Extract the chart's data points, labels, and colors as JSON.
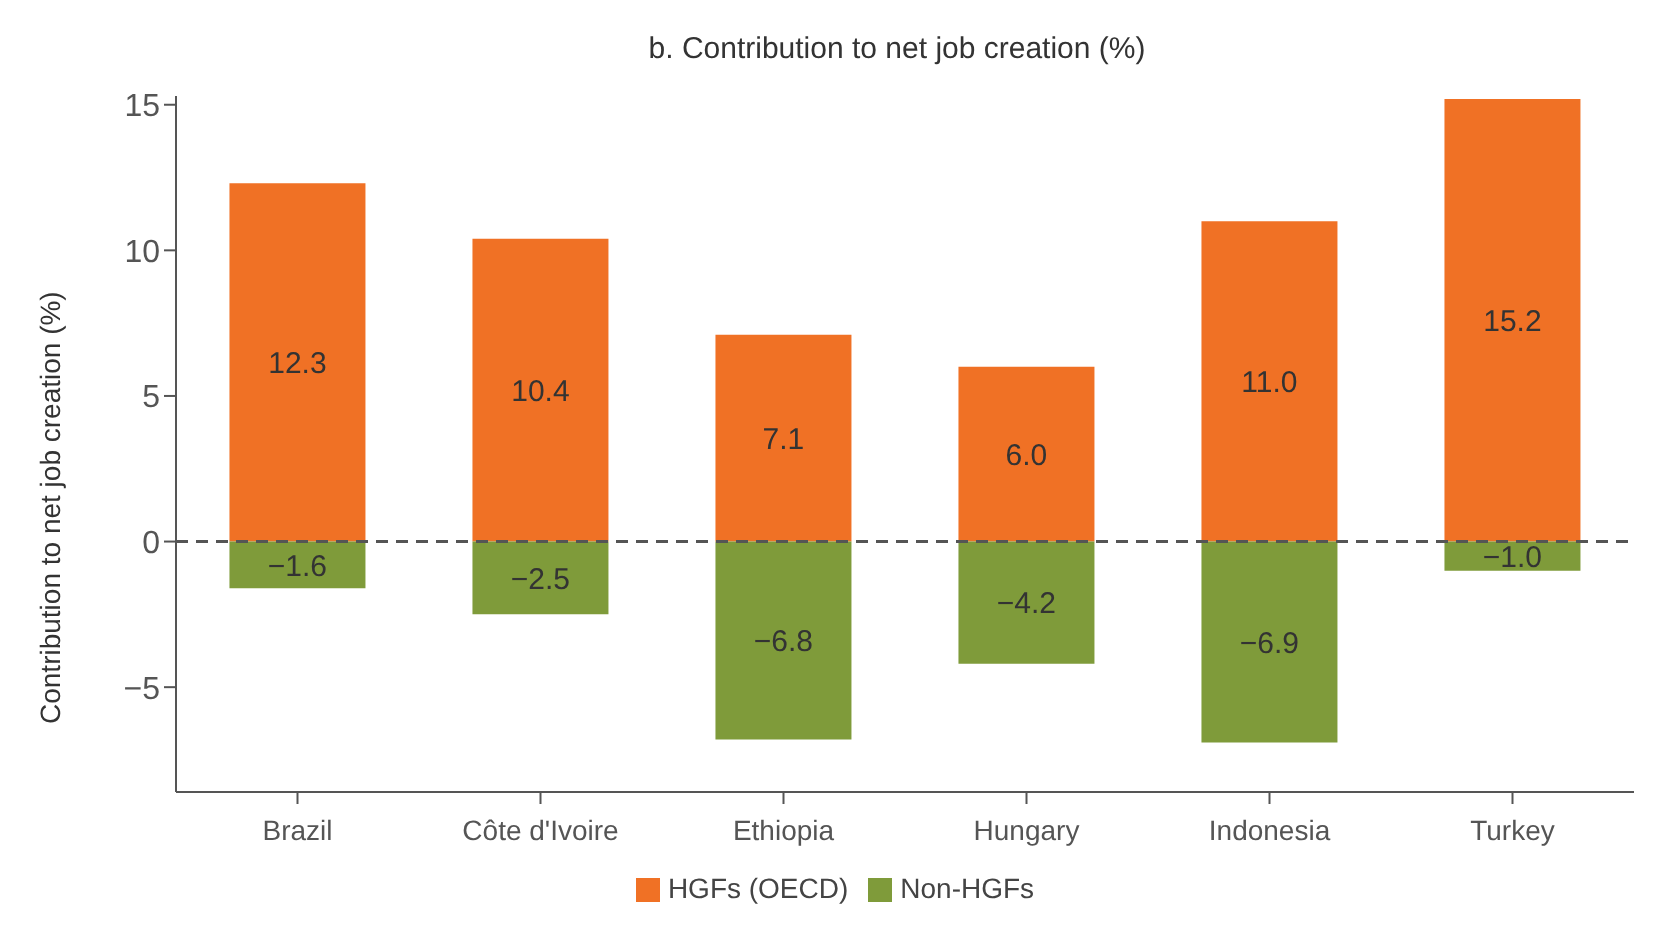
{
  "chart_data": {
    "type": "bar",
    "title": "b. Contribution to net job creation (%)",
    "ylabel": "Contribution to net job creation (%)",
    "categories": [
      "Brazil",
      "Côte d'Ivoire",
      "Ethiopia",
      "Hungary",
      "Indonesia",
      "Turkey"
    ],
    "series": [
      {
        "name": "HGFs (OECD)",
        "color": "#f07125",
        "values": [
          12.3,
          10.4,
          7.1,
          6.0,
          11.0,
          15.2
        ]
      },
      {
        "name": "Non-HGFs",
        "color": "#7f9b3a",
        "values": [
          -1.6,
          -2.5,
          -6.8,
          -4.2,
          -6.9,
          -1.0
        ]
      }
    ],
    "value_labels": [
      [
        "12.3",
        "10.4",
        "7.1",
        "6.0",
        "11.0",
        "15.2"
      ],
      [
        "−1.6",
        "−2.5",
        "−6.8",
        "−4.2",
        "−6.9",
        "−1.0"
      ]
    ],
    "stacked": true,
    "ylim": [
      -8.6,
      15.3
    ],
    "yticks": [
      15,
      10,
      5,
      0,
      {
        "value": -5,
        "label": "−5"
      }
    ],
    "ref_lines": [
      {
        "axis": "y",
        "value": 0,
        "color": "#555555",
        "line_style": "dashed"
      }
    ],
    "grid": false,
    "legend": "bottom"
  }
}
